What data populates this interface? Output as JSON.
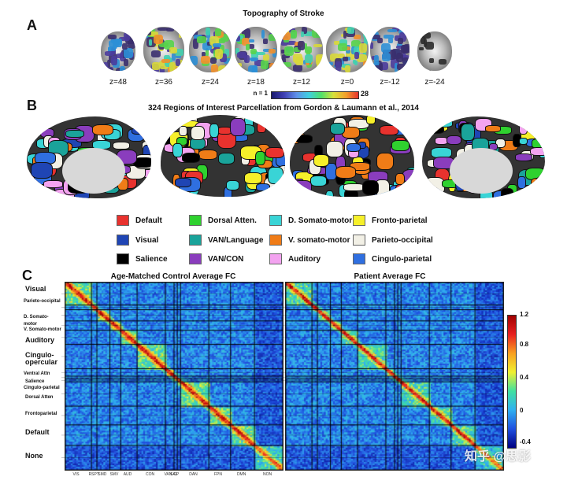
{
  "panel_a": {
    "letter": "A",
    "title": "Topography of Stroke",
    "z_labels": [
      "z=48",
      "z=36",
      "z=24",
      "z=18",
      "z=12",
      "z=0",
      "z=-12",
      "z=-24"
    ],
    "colorbar": {
      "min_label": "n = 1",
      "max_label": "28"
    }
  },
  "panel_b": {
    "letter": "B",
    "title": "324 Regions of Interest Parcellation from Gordon & Laumann et al., 2014",
    "legend": [
      {
        "label": "Default",
        "color": "#e8322e"
      },
      {
        "label": "Dorsal Atten.",
        "color": "#2fd12f"
      },
      {
        "label": "D. Somato-motor",
        "color": "#39d4d6"
      },
      {
        "label": "Fronto-parietal",
        "color": "#f6f02a"
      },
      {
        "label": "Visual",
        "color": "#1f45b4"
      },
      {
        "label": "VAN/Language",
        "color": "#1aa39a"
      },
      {
        "label": "V. somato-motor",
        "color": "#f07c17"
      },
      {
        "label": "Parieto-occipital",
        "color": "#f2f0e6"
      },
      {
        "label": "Salience",
        "color": "#000000"
      },
      {
        "label": "VAN/CON",
        "color": "#8a3dbd"
      },
      {
        "label": "Auditory",
        "color": "#f3a3f0"
      },
      {
        "label": "Cingulo-parietal",
        "color": "#2f6fe0"
      }
    ]
  },
  "panel_c": {
    "letter": "C",
    "left_title": "Age-Matched Control Average FC",
    "right_title": "Patient Average FC",
    "row_labels": [
      "Visual",
      "Parieto-occipital",
      "D. Somato-motor",
      "V. Somato-motor",
      "Auditory",
      "Cingulo-opercular",
      "Ventral Attn",
      "Salience",
      "Cingulo-parietal",
      "Dorsal Atten",
      "Frontoparietal",
      "Default",
      "None"
    ],
    "x_ticks": [
      "VIS",
      "RSPT",
      "SMD",
      "SMV",
      "AUD",
      "CON",
      "VAN",
      "SAL",
      "CP",
      "DAN",
      "FPN",
      "DMN",
      "NON"
    ],
    "colorbar_ticks": [
      "1.2",
      "0.8",
      "0.4",
      "0",
      "-0.4"
    ],
    "watermark": "知乎 @思影"
  }
}
